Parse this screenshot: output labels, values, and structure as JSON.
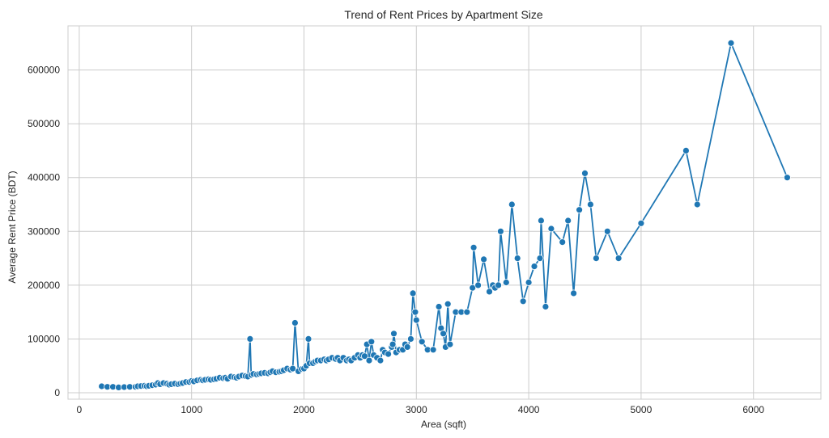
{
  "chart_data": {
    "type": "line",
    "title": "Trend of Rent Prices by Apartment Size",
    "xlabel": "Area (sqft)",
    "ylabel": "Average Rent Price (BDT)",
    "xlim": [
      -100,
      6600
    ],
    "ylim": [
      -12000,
      682000
    ],
    "xticks": [
      0,
      1000,
      2000,
      3000,
      4000,
      5000,
      6000
    ],
    "yticks": [
      0,
      100000,
      200000,
      300000,
      400000,
      500000,
      600000
    ],
    "grid": true,
    "color": "#1f77b4",
    "series": [
      {
        "x": [
          200,
          250,
          300,
          350,
          400,
          450,
          500,
          520,
          550,
          580,
          600,
          620,
          650,
          680,
          700,
          720,
          750,
          780,
          800,
          820,
          850,
          880,
          900,
          920,
          950,
          980,
          1000,
          1020,
          1050,
          1080,
          1100,
          1120,
          1150,
          1170,
          1200,
          1220,
          1250,
          1280,
          1300,
          1320,
          1350,
          1380,
          1400,
          1420,
          1450,
          1480,
          1500,
          1520,
          1530,
          1550,
          1580,
          1600,
          1620,
          1650,
          1680,
          1700,
          1720,
          1750,
          1780,
          1800,
          1820,
          1850,
          1880,
          1900,
          1920,
          1950,
          1980,
          2000,
          2020,
          2040,
          2050,
          2080,
          2100,
          2120,
          2150,
          2180,
          2200,
          2220,
          2250,
          2280,
          2300,
          2320,
          2350,
          2380,
          2400,
          2420,
          2450,
          2480,
          2500,
          2520,
          2540,
          2560,
          2580,
          2600,
          2620,
          2650,
          2680,
          2700,
          2720,
          2750,
          2780,
          2790,
          2800,
          2820,
          2850,
          2880,
          2900,
          2920,
          2950,
          2970,
          2990,
          3000,
          3050,
          3100,
          3150,
          3200,
          3220,
          3240,
          3260,
          3280,
          3300,
          3350,
          3400,
          3450,
          3500,
          3510,
          3550,
          3600,
          3650,
          3680,
          3700,
          3730,
          3750,
          3800,
          3850,
          3900,
          3950,
          4000,
          4050,
          4100,
          4110,
          4150,
          4200,
          4300,
          4350,
          4400,
          4450,
          4500,
          4550,
          4600,
          4700,
          4800,
          5000,
          5400,
          5500,
          5800,
          6300
        ],
        "y": [
          12000,
          11000,
          11000,
          10000,
          10500,
          11000,
          11000,
          12000,
          12500,
          13000,
          12000,
          13000,
          14000,
          15000,
          18000,
          16000,
          18000,
          17000,
          15000,
          16000,
          17000,
          16000,
          17000,
          18000,
          20000,
          20000,
          22000,
          21000,
          23000,
          24000,
          23000,
          24000,
          25000,
          24000,
          25000,
          26000,
          28000,
          27000,
          28000,
          26000,
          30000,
          29000,
          28000,
          30000,
          32000,
          31000,
          30000,
          100000,
          33000,
          35000,
          34000,
          35000,
          36000,
          37000,
          36000,
          38000,
          40000,
          38000,
          39000,
          40000,
          42000,
          45000,
          43000,
          45000,
          130000,
          40000,
          44000,
          45000,
          50000,
          100000,
          55000,
          55000,
          58000,
          60000,
          60000,
          62000,
          60000,
          62000,
          65000,
          63000,
          65000,
          60000,
          65000,
          60000,
          62000,
          60000,
          65000,
          70000,
          65000,
          70000,
          68000,
          90000,
          60000,
          95000,
          70000,
          65000,
          60000,
          80000,
          75000,
          72000,
          85000,
          90000,
          110000,
          75000,
          80000,
          80000,
          90000,
          85000,
          100000,
          185000,
          150000,
          135000,
          95000,
          80000,
          80000,
          160000,
          120000,
          110000,
          85000,
          165000,
          90000,
          150000,
          150000,
          150000,
          195000,
          270000,
          200000,
          248000,
          188000,
          200000,
          195000,
          200000,
          300000,
          205000,
          350000,
          250000,
          170000,
          205000,
          235000,
          250000,
          320000,
          160000,
          305000,
          280000,
          320000,
          185000,
          340000,
          408000,
          350000,
          250000,
          300000,
          250000,
          315000,
          450000,
          350000,
          650000,
          400000
        ]
      }
    ]
  }
}
